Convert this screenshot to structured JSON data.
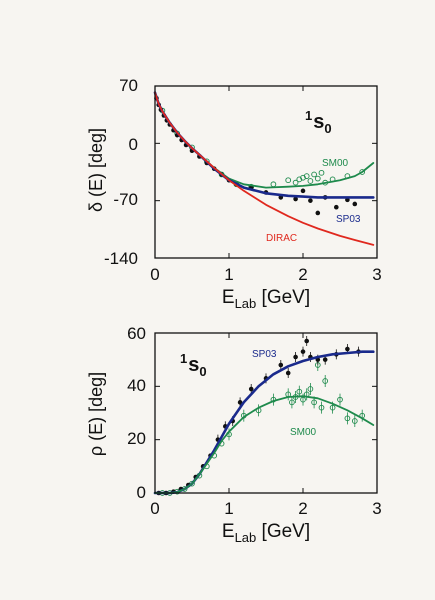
{
  "colors": {
    "SM00": "#1e8a4c",
    "SP03": "#1a2a8c",
    "DIRAC": "#e0281e",
    "data": "#111111",
    "frame": "#111111"
  },
  "chart_data": [
    {
      "type": "line",
      "wave_label": {
        "sup": "1",
        "main": "s",
        "sub": "0"
      },
      "xlabel": {
        "main": "E",
        "sub": "Lab",
        "unit": " [GeV]"
      },
      "ylabel": "δ (E) [deg]",
      "xlim": [
        0,
        3
      ],
      "ylim": [
        -140,
        70
      ],
      "xticks": [
        0,
        1,
        2,
        3
      ],
      "yticks": [
        70,
        0,
        -70,
        -140
      ],
      "series": [
        {
          "name": "SM00",
          "color": "#1e8a4c",
          "x": [
            0.0,
            0.05,
            0.1,
            0.2,
            0.3,
            0.4,
            0.5,
            0.6,
            0.8,
            1.0,
            1.2,
            1.5,
            1.8,
            2.0,
            2.2,
            2.5,
            2.7,
            2.8,
            2.95
          ],
          "y": [
            62,
            48,
            39,
            25,
            13,
            3,
            -6,
            -14,
            -30,
            -43,
            -50,
            -54,
            -53,
            -52,
            -50,
            -45,
            -40,
            -35,
            -24
          ]
        },
        {
          "name": "SP03",
          "color": "#1a2a8c",
          "x": [
            0.0,
            0.05,
            0.1,
            0.2,
            0.3,
            0.4,
            0.5,
            0.6,
            0.8,
            1.0,
            1.2,
            1.5,
            1.8,
            2.0,
            2.2,
            2.5,
            2.7,
            2.95
          ],
          "y": [
            62,
            48,
            39,
            25,
            13,
            3,
            -6,
            -14,
            -31,
            -45,
            -54,
            -61,
            -64,
            -65,
            -66,
            -66,
            -66,
            -66
          ]
        },
        {
          "name": "DIRAC",
          "color": "#e0281e",
          "x": [
            0.0,
            0.05,
            0.1,
            0.2,
            0.3,
            0.4,
            0.5,
            0.6,
            0.8,
            1.0,
            1.2,
            1.5,
            1.8,
            2.0,
            2.2,
            2.5,
            2.7,
            2.95
          ],
          "y": [
            62,
            48,
            39,
            25,
            13,
            3,
            -6,
            -14,
            -30,
            -45,
            -58,
            -75,
            -89,
            -97,
            -104,
            -113,
            -118,
            -124
          ]
        }
      ],
      "points_filled": {
        "x": [
          0.02,
          0.05,
          0.08,
          0.12,
          0.16,
          0.2,
          0.25,
          0.3,
          0.36,
          0.42,
          0.5,
          0.6,
          0.7,
          0.8,
          0.9,
          1.0,
          1.1,
          1.3,
          1.5,
          1.7,
          1.9,
          2.0,
          2.1,
          2.2,
          2.3,
          2.45,
          2.6,
          2.7
        ],
        "y": [
          55,
          47,
          41,
          34,
          28,
          23,
          16,
          10,
          4,
          -2,
          -9,
          -16,
          -24,
          -31,
          -38,
          -45,
          -50,
          -54,
          -60,
          -66,
          -68,
          -58,
          -70,
          -85,
          -66,
          -78,
          -69,
          -74
        ]
      },
      "points_open": {
        "x": [
          0.1,
          0.3,
          0.5,
          0.7,
          0.9,
          1.1,
          1.3,
          1.6,
          1.8,
          1.9,
          1.95,
          2.0,
          2.05,
          2.1,
          2.15,
          2.2,
          2.25,
          2.3,
          2.4,
          2.6,
          2.8
        ],
        "y": [
          40,
          12,
          -5,
          -22,
          -38,
          -50,
          -53,
          -50,
          -45,
          -48,
          -44,
          -42,
          -40,
          -46,
          -38,
          -43,
          -36,
          -48,
          -44,
          -40,
          -35
        ]
      }
    },
    {
      "type": "line",
      "wave_label": {
        "sup": "1",
        "main": "s",
        "sub": "0"
      },
      "xlabel": {
        "main": "E",
        "sub": "Lab",
        "unit": " [GeV]"
      },
      "ylabel": "ρ (E) [deg]",
      "xlim": [
        0,
        3
      ],
      "ylim": [
        0,
        60
      ],
      "xticks": [
        0,
        1,
        2,
        3
      ],
      "yticks": [
        0,
        20,
        40,
        60
      ],
      "series": [
        {
          "name": "SP03",
          "color": "#1a2a8c",
          "x": [
            0.0,
            0.2,
            0.3,
            0.4,
            0.5,
            0.6,
            0.7,
            0.8,
            0.9,
            1.0,
            1.2,
            1.4,
            1.6,
            1.8,
            2.0,
            2.2,
            2.4,
            2.6,
            2.8,
            2.95
          ],
          "y": [
            0,
            0,
            0.3,
            1.5,
            3.5,
            7,
            11.5,
            16,
            21,
            26,
            34,
            40,
            44.5,
            47.5,
            49.5,
            51,
            52,
            52.5,
            53,
            53
          ]
        },
        {
          "name": "SM00",
          "color": "#1e8a4c",
          "x": [
            0.0,
            0.2,
            0.3,
            0.4,
            0.5,
            0.6,
            0.7,
            0.8,
            0.9,
            1.0,
            1.2,
            1.4,
            1.6,
            1.8,
            2.0,
            2.2,
            2.4,
            2.6,
            2.8,
            2.95
          ],
          "y": [
            0,
            0,
            0.3,
            1.5,
            3.5,
            7,
            11,
            15,
            19.5,
            23,
            28.5,
            32,
            34.5,
            36,
            36.3,
            35.5,
            33.5,
            31,
            28,
            25.5
          ]
        }
      ],
      "points_filled": {
        "x": [
          0.05,
          0.15,
          0.25,
          0.35,
          0.45,
          0.55,
          0.65,
          0.75,
          0.85,
          0.95,
          1.05,
          1.15,
          1.3,
          1.5,
          1.7,
          1.8,
          1.9,
          2.0,
          2.05,
          2.1,
          2.2,
          2.3,
          2.45,
          2.6,
          2.75
        ],
        "y": [
          0,
          0,
          0.5,
          1.5,
          3,
          6,
          10,
          14,
          20,
          25,
          27,
          34,
          39,
          43,
          48,
          45,
          51,
          53,
          57,
          51,
          50,
          50,
          52,
          54,
          53
        ]
      },
      "points_open": {
        "x": [
          0.1,
          0.2,
          0.3,
          0.4,
          0.5,
          0.6,
          0.7,
          0.8,
          0.9,
          1.0,
          1.2,
          1.4,
          1.6,
          1.8,
          1.85,
          1.9,
          1.95,
          2.0,
          2.05,
          2.1,
          2.15,
          2.2,
          2.25,
          2.3,
          2.4,
          2.5,
          2.6,
          2.7,
          2.8
        ],
        "y": [
          0,
          0,
          0.5,
          1.5,
          3.5,
          6.5,
          10,
          14,
          18.5,
          22,
          29,
          31,
          35,
          37,
          34,
          36,
          38,
          35,
          37,
          39,
          34,
          48,
          32,
          42,
          32,
          35,
          28,
          27,
          29
        ]
      }
    }
  ]
}
